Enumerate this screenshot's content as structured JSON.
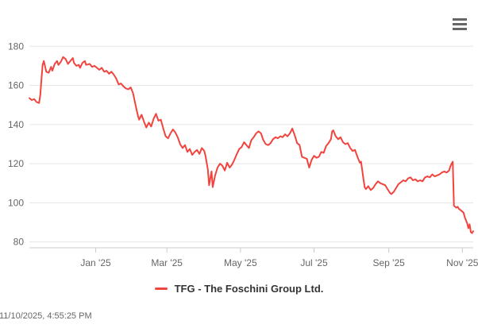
{
  "controls": {
    "menu_button_tooltip": "Chart context menu"
  },
  "footer": {
    "timestamp": "11/10/2025, 4:55:25 PM"
  },
  "colors": {
    "line": "#f2443f",
    "grid": "#e6e6e6",
    "axis": "#cccccc",
    "axis_label": "#666666",
    "legend_text": "#333333",
    "menu_icon": "#666666"
  },
  "chart_data": {
    "type": "line",
    "title": "",
    "xlabel": "",
    "ylabel": "",
    "grid": true,
    "legend_position": "bottom",
    "ylim": [
      77,
      185.4
    ],
    "y_ticks": [
      80,
      100,
      120,
      140,
      160,
      180
    ],
    "x_range": [
      "2024-11-07",
      "2025-11-10"
    ],
    "x_ticks": [
      {
        "date": "2025-01-01",
        "label": "Jan '25"
      },
      {
        "date": "2025-03-01",
        "label": "Mar '25"
      },
      {
        "date": "2025-05-01",
        "label": "May '25"
      },
      {
        "date": "2025-07-01",
        "label": "Jul '25"
      },
      {
        "date": "2025-09-01",
        "label": "Sep '25"
      },
      {
        "date": "2025-11-01",
        "label": "Nov '25"
      }
    ],
    "series": [
      {
        "name": "TFG - The Foschini Group Ltd.",
        "color": "#f2443f",
        "points": [
          [
            "2024-11-07",
            153.5
          ],
          [
            "2024-11-09",
            152.5
          ],
          [
            "2024-11-11",
            153.0
          ],
          [
            "2024-11-13",
            151.5
          ],
          [
            "2024-11-15",
            151.0
          ],
          [
            "2024-11-16",
            155.0
          ],
          [
            "2024-11-17",
            163.0
          ],
          [
            "2024-11-18",
            170.5
          ],
          [
            "2024-11-19",
            172.5
          ],
          [
            "2024-11-21",
            167.0
          ],
          [
            "2024-11-23",
            166.5
          ],
          [
            "2024-11-25",
            169.5
          ],
          [
            "2024-11-26",
            167.5
          ],
          [
            "2024-11-28",
            171.0
          ],
          [
            "2024-11-30",
            172.5
          ],
          [
            "2024-12-01",
            170.5
          ],
          [
            "2024-12-03",
            172.0
          ],
          [
            "2024-12-05",
            174.5
          ],
          [
            "2024-12-07",
            173.5
          ],
          [
            "2024-12-09",
            171.0
          ],
          [
            "2024-12-11",
            172.5
          ],
          [
            "2024-12-13",
            174.0
          ],
          [
            "2024-12-14",
            171.5
          ],
          [
            "2024-12-16",
            170.0
          ],
          [
            "2024-12-18",
            170.5
          ],
          [
            "2024-12-19",
            169.0
          ],
          [
            "2024-12-21",
            171.5
          ],
          [
            "2024-12-23",
            172.5
          ],
          [
            "2024-12-24",
            170.5
          ],
          [
            "2024-12-27",
            171.0
          ],
          [
            "2024-12-29",
            169.5
          ],
          [
            "2024-12-31",
            170.0
          ],
          [
            "2025-01-02",
            169.0
          ],
          [
            "2025-01-04",
            168.0
          ],
          [
            "2025-01-06",
            169.0
          ],
          [
            "2025-01-08",
            167.0
          ],
          [
            "2025-01-10",
            167.5
          ],
          [
            "2025-01-12",
            166.0
          ],
          [
            "2025-01-14",
            167.0
          ],
          [
            "2025-01-16",
            165.5
          ],
          [
            "2025-01-18",
            163.5
          ],
          [
            "2025-01-20",
            160.5
          ],
          [
            "2025-01-22",
            161.0
          ],
          [
            "2025-01-24",
            159.5
          ],
          [
            "2025-01-26",
            158.5
          ],
          [
            "2025-01-28",
            158.0
          ],
          [
            "2025-01-30",
            159.0
          ],
          [
            "2025-02-01",
            156.0
          ],
          [
            "2025-02-03",
            150.0
          ],
          [
            "2025-02-05",
            144.5
          ],
          [
            "2025-02-06",
            142.5
          ],
          [
            "2025-02-08",
            145.0
          ],
          [
            "2025-02-10",
            141.5
          ],
          [
            "2025-02-12",
            138.5
          ],
          [
            "2025-02-14",
            141.0
          ],
          [
            "2025-02-16",
            139.0
          ],
          [
            "2025-02-18",
            143.0
          ],
          [
            "2025-02-20",
            145.5
          ],
          [
            "2025-02-22",
            142.0
          ],
          [
            "2025-02-24",
            142.5
          ],
          [
            "2025-02-26",
            138.0
          ],
          [
            "2025-02-28",
            134.0
          ],
          [
            "2025-03-02",
            133.0
          ],
          [
            "2025-03-04",
            135.5
          ],
          [
            "2025-03-06",
            137.5
          ],
          [
            "2025-03-08",
            136.0
          ],
          [
            "2025-03-10",
            133.5
          ],
          [
            "2025-03-12",
            130.0
          ],
          [
            "2025-03-14",
            128.0
          ],
          [
            "2025-03-16",
            129.5
          ],
          [
            "2025-03-18",
            126.0
          ],
          [
            "2025-03-20",
            127.5
          ],
          [
            "2025-03-22",
            124.5
          ],
          [
            "2025-03-24",
            126.0
          ],
          [
            "2025-03-26",
            127.0
          ],
          [
            "2025-03-28",
            125.0
          ],
          [
            "2025-03-30",
            128.0
          ],
          [
            "2025-04-01",
            126.5
          ],
          [
            "2025-04-02",
            124.0
          ],
          [
            "2025-04-04",
            117.0
          ],
          [
            "2025-04-05",
            109.0
          ],
          [
            "2025-04-07",
            116.0
          ],
          [
            "2025-04-08",
            108.0
          ],
          [
            "2025-04-10",
            114.0
          ],
          [
            "2025-04-12",
            118.0
          ],
          [
            "2025-04-14",
            120.0
          ],
          [
            "2025-04-16",
            119.0
          ],
          [
            "2025-04-18",
            116.5
          ],
          [
            "2025-04-20",
            120.5
          ],
          [
            "2025-04-22",
            118.0
          ],
          [
            "2025-04-24",
            119.5
          ],
          [
            "2025-04-26",
            122.0
          ],
          [
            "2025-04-28",
            125.0
          ],
          [
            "2025-04-30",
            127.5
          ],
          [
            "2025-05-02",
            128.5
          ],
          [
            "2025-05-04",
            131.0
          ],
          [
            "2025-05-06",
            129.5
          ],
          [
            "2025-05-08",
            128.0
          ],
          [
            "2025-05-10",
            132.0
          ],
          [
            "2025-05-12",
            133.5
          ],
          [
            "2025-05-14",
            135.5
          ],
          [
            "2025-05-16",
            136.5
          ],
          [
            "2025-05-18",
            135.5
          ],
          [
            "2025-05-20",
            132.0
          ],
          [
            "2025-05-22",
            130.0
          ],
          [
            "2025-05-24",
            129.5
          ],
          [
            "2025-05-26",
            130.5
          ],
          [
            "2025-05-28",
            132.5
          ],
          [
            "2025-05-30",
            133.5
          ],
          [
            "2025-06-01",
            133.0
          ],
          [
            "2025-06-03",
            134.0
          ],
          [
            "2025-06-05",
            133.5
          ],
          [
            "2025-06-07",
            135.0
          ],
          [
            "2025-06-09",
            134.0
          ],
          [
            "2025-06-11",
            135.5
          ],
          [
            "2025-06-13",
            138.0
          ],
          [
            "2025-06-15",
            134.5
          ],
          [
            "2025-06-17",
            130.5
          ],
          [
            "2025-06-19",
            129.5
          ],
          [
            "2025-06-21",
            123.5
          ],
          [
            "2025-06-23",
            123.0
          ],
          [
            "2025-06-25",
            122.5
          ],
          [
            "2025-06-27",
            118.0
          ],
          [
            "2025-06-29",
            122.0
          ],
          [
            "2025-07-01",
            124.0
          ],
          [
            "2025-07-03",
            123.0
          ],
          [
            "2025-07-05",
            123.5
          ],
          [
            "2025-07-07",
            126.0
          ],
          [
            "2025-07-09",
            125.5
          ],
          [
            "2025-07-11",
            129.0
          ],
          [
            "2025-07-13",
            130.5
          ],
          [
            "2025-07-15",
            132.5
          ],
          [
            "2025-07-16",
            136.5
          ],
          [
            "2025-07-17",
            137.0
          ],
          [
            "2025-07-19",
            134.0
          ],
          [
            "2025-07-21",
            132.5
          ],
          [
            "2025-07-23",
            133.5
          ],
          [
            "2025-07-25",
            131.0
          ],
          [
            "2025-07-27",
            130.0
          ],
          [
            "2025-07-29",
            130.5
          ],
          [
            "2025-07-31",
            128.0
          ],
          [
            "2025-08-02",
            126.5
          ],
          [
            "2025-08-04",
            127.0
          ],
          [
            "2025-08-06",
            123.5
          ],
          [
            "2025-08-08",
            120.5
          ],
          [
            "2025-08-09",
            121.0
          ],
          [
            "2025-08-11",
            112.0
          ],
          [
            "2025-08-12",
            108.0
          ],
          [
            "2025-08-13",
            107.0
          ],
          [
            "2025-08-15",
            108.5
          ],
          [
            "2025-08-17",
            106.5
          ],
          [
            "2025-08-19",
            107.5
          ],
          [
            "2025-08-21",
            109.5
          ],
          [
            "2025-08-23",
            111.0
          ],
          [
            "2025-08-25",
            110.0
          ],
          [
            "2025-08-27",
            109.5
          ],
          [
            "2025-08-29",
            109.0
          ],
          [
            "2025-08-31",
            107.0
          ],
          [
            "2025-09-02",
            105.0
          ],
          [
            "2025-09-03",
            104.5
          ],
          [
            "2025-09-05",
            105.5
          ],
          [
            "2025-09-07",
            107.5
          ],
          [
            "2025-09-09",
            109.5
          ],
          [
            "2025-09-11",
            110.5
          ],
          [
            "2025-09-13",
            111.5
          ],
          [
            "2025-09-15",
            111.0
          ],
          [
            "2025-09-17",
            112.5
          ],
          [
            "2025-09-19",
            113.0
          ],
          [
            "2025-09-21",
            111.5
          ],
          [
            "2025-09-23",
            112.0
          ],
          [
            "2025-09-25",
            111.0
          ],
          [
            "2025-09-27",
            111.5
          ],
          [
            "2025-09-29",
            111.0
          ],
          [
            "2025-10-01",
            113.0
          ],
          [
            "2025-10-03",
            113.5
          ],
          [
            "2025-10-05",
            113.0
          ],
          [
            "2025-10-07",
            114.5
          ],
          [
            "2025-10-09",
            113.5
          ],
          [
            "2025-10-11",
            114.0
          ],
          [
            "2025-10-13",
            114.5
          ],
          [
            "2025-10-15",
            115.5
          ],
          [
            "2025-10-17",
            116.0
          ],
          [
            "2025-10-19",
            115.5
          ],
          [
            "2025-10-21",
            116.5
          ],
          [
            "2025-10-22",
            118.5
          ],
          [
            "2025-10-23",
            120.0
          ],
          [
            "2025-10-24",
            121.0
          ],
          [
            "2025-10-25",
            98.5
          ],
          [
            "2025-10-27",
            97.5
          ],
          [
            "2025-10-28",
            98.0
          ],
          [
            "2025-10-29",
            97.0
          ],
          [
            "2025-10-31",
            96.0
          ],
          [
            "2025-11-02",
            95.0
          ],
          [
            "2025-11-03",
            92.5
          ],
          [
            "2025-11-04",
            91.0
          ],
          [
            "2025-11-05",
            89.5
          ],
          [
            "2025-11-06",
            87.0
          ],
          [
            "2025-11-07",
            89.0
          ],
          [
            "2025-11-08",
            85.0
          ],
          [
            "2025-11-09",
            84.5
          ],
          [
            "2025-11-10",
            85.5
          ]
        ]
      }
    ]
  }
}
